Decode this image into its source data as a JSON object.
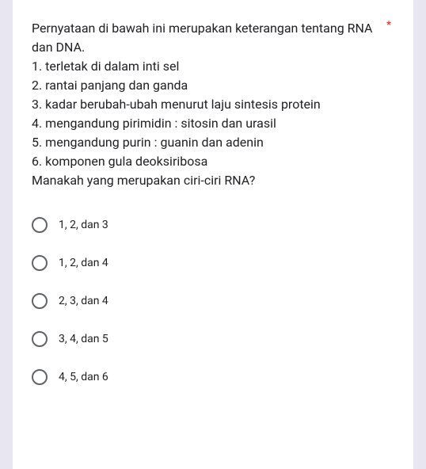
{
  "question": {
    "intro": "Pernyataan di bawah ini merupakan keterangan tentang RNA dan DNA.",
    "statements": [
      "1. terletak di dalam inti sel",
      "2. rantai panjang dan ganda",
      "3. kadar berubah-ubah menurut laju sintesis protein",
      "4. mengandung pirimidin : sitosin dan urasil",
      "5. mengandung purin : guanin dan adenin",
      "6. komponen gula deoksiribosa"
    ],
    "prompt": "Manakah yang merupakan ciri-ciri RNA?",
    "required_marker": "*"
  },
  "options": [
    {
      "label": "1, 2, dan 3"
    },
    {
      "label": "1, 2, dan 4"
    },
    {
      "label": "2, 3, dan 4"
    },
    {
      "label": "3, 4, dan 5"
    },
    {
      "label": "4, 5, dan 6"
    }
  ],
  "colors": {
    "background": "#e8e6f0",
    "card": "#ffffff",
    "text": "#202124",
    "radio_border": "#5f6368",
    "required": "#d93025"
  },
  "typography": {
    "question_fontsize": 16,
    "option_fontsize": 14,
    "line_height": 24
  }
}
